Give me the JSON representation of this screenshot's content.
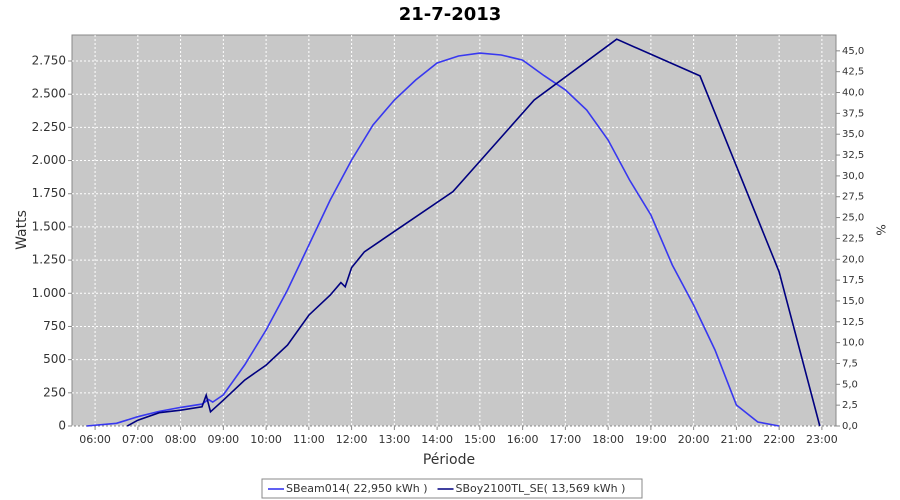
{
  "chart_data": {
    "type": "line",
    "title": "21-7-2013",
    "xlabel": "Période",
    "ylabel": "Watts",
    "y2label": "%",
    "xlim": [
      5.46,
      23.33
    ],
    "ylim": [
      0,
      2946
    ],
    "y2lim": [
      0,
      46.9
    ],
    "xticks": [
      {
        "value": 6,
        "label": "06:00"
      },
      {
        "value": 7,
        "label": "07:00"
      },
      {
        "value": 8,
        "label": "08:00"
      },
      {
        "value": 9,
        "label": "09:00"
      },
      {
        "value": 10,
        "label": "10:00"
      },
      {
        "value": 11,
        "label": "11:00"
      },
      {
        "value": 12,
        "label": "12:00"
      },
      {
        "value": 13,
        "label": "13:00"
      },
      {
        "value": 14,
        "label": "14:00"
      },
      {
        "value": 15,
        "label": "15:00"
      },
      {
        "value": 16,
        "label": "16:00"
      },
      {
        "value": 17,
        "label": "17:00"
      },
      {
        "value": 18,
        "label": "18:00"
      },
      {
        "value": 19,
        "label": "19:00"
      },
      {
        "value": 20,
        "label": "20:00"
      },
      {
        "value": 21,
        "label": "21:00"
      },
      {
        "value": 22,
        "label": "22:00"
      },
      {
        "value": 23,
        "label": "23:00"
      }
    ],
    "yticks": [
      0,
      250,
      500,
      750,
      {
        "value": 1000,
        "label": "1.000"
      },
      {
        "value": 1250,
        "label": "1.250"
      },
      {
        "value": 1500,
        "label": "1.500"
      },
      {
        "value": 1750,
        "label": "1.750"
      },
      {
        "value": 2000,
        "label": "2.000"
      },
      {
        "value": 2250,
        "label": "2.250"
      },
      {
        "value": 2500,
        "label": "2.500"
      },
      {
        "value": 2750,
        "label": "2.750"
      }
    ],
    "y2ticks": [
      {
        "value": 0,
        "label": "0,0"
      },
      {
        "value": 2.5,
        "label": "2,5"
      },
      {
        "value": 5,
        "label": "5,0"
      },
      {
        "value": 7.5,
        "label": "7,5"
      },
      {
        "value": 10,
        "label": "10,0"
      },
      {
        "value": 12.5,
        "label": "12,5"
      },
      {
        "value": 15,
        "label": "15,0"
      },
      {
        "value": 17.5,
        "label": "17,5"
      },
      {
        "value": 20,
        "label": "20,0"
      },
      {
        "value": 22.5,
        "label": "22,5"
      },
      {
        "value": 25,
        "label": "25,0"
      },
      {
        "value": 27.5,
        "label": "27,5"
      },
      {
        "value": 30,
        "label": "30,0"
      },
      {
        "value": 32.5,
        "label": "32,5"
      },
      {
        "value": 35,
        "label": "35,0"
      },
      {
        "value": 37.5,
        "label": "37,5"
      },
      {
        "value": 40,
        "label": "40,0"
      },
      {
        "value": 42.5,
        "label": "42,5"
      },
      {
        "value": 45,
        "label": "45,0"
      }
    ],
    "grid": true,
    "legend": "bottom",
    "series": [
      {
        "name": "SBeam014( 22,950 kWh )",
        "color": "#3838f0",
        "x": [
          5.8,
          6.5,
          7.0,
          7.5,
          8.0,
          8.5,
          8.65,
          8.75,
          9.0,
          9.5,
          10.0,
          10.5,
          11.0,
          11.5,
          12.0,
          12.5,
          13.0,
          13.5,
          14.0,
          14.5,
          15.0,
          15.5,
          16.0,
          16.5,
          17.0,
          17.5,
          18.0,
          18.5,
          19.0,
          19.5,
          20.0,
          20.5,
          21.0,
          21.5,
          22.0
        ],
        "values": [
          0,
          20,
          70,
          110,
          140,
          165,
          200,
          180,
          234,
          460,
          723,
          1025,
          1364,
          1703,
          2004,
          2268,
          2456,
          2607,
          2735,
          2788,
          2810,
          2795,
          2757,
          2640,
          2532,
          2381,
          2155,
          1854,
          1590,
          1213,
          912,
          573,
          158,
          30,
          0
        ]
      },
      {
        "name": "SBoy2100TL_SE( 13,569 kWh )",
        "color": "#000080",
        "axis": "y2",
        "x": [
          6.75,
          7.0,
          7.5,
          8.0,
          8.5,
          8.6,
          8.7,
          9.0,
          9.5,
          10.0,
          10.5,
          11.0,
          11.5,
          11.75,
          11.85,
          12.0,
          12.3,
          14.37,
          16.27,
          18.2,
          20.15,
          22.0,
          22.95
        ],
        "values": [
          0,
          0.7,
          1.6,
          1.9,
          2.3,
          3.7,
          1.7,
          3.1,
          5.5,
          7.3,
          9.7,
          13.3,
          15.7,
          17.2,
          16.7,
          19.0,
          20.9,
          28.1,
          39.1,
          46.4,
          42.0,
          18.5,
          0
        ]
      }
    ]
  }
}
